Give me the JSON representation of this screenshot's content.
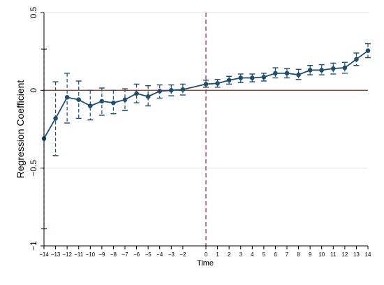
{
  "chart_data": {
    "type": "line",
    "title": "",
    "xlabel": "Time",
    "ylabel": "Regression Coefficient",
    "xlim": [
      -14,
      14
    ],
    "ylim": [
      -1,
      0.5
    ],
    "x_ticks": [
      -14,
      -13,
      -12,
      -11,
      -10,
      -9,
      -8,
      -7,
      -6,
      -5,
      -4,
      -3,
      -2,
      0,
      1,
      2,
      3,
      4,
      5,
      6,
      7,
      8,
      9,
      10,
      11,
      12,
      13,
      14
    ],
    "x_tick_labels": [
      "−14",
      "−13",
      "−12",
      "−11",
      "−10",
      "−9",
      "−8",
      "−7",
      "−6",
      "−5",
      "−4",
      "−3",
      "−2",
      "0",
      "1",
      "2",
      "3",
      "4",
      "5",
      "6",
      "7",
      "8",
      "9",
      "10",
      "11",
      "12",
      "13",
      "14"
    ],
    "y_ticks": [
      -1,
      -0.5,
      0,
      0.5
    ],
    "y_tick_labels": [
      "−1",
      "−0.5",
      "0",
      "0.5"
    ],
    "gridlines": "horizontal",
    "reference_lines": {
      "horizontal_at": 0,
      "vertical_at": 0
    },
    "series": [
      {
        "x": [
          -14,
          -13,
          -12,
          -11,
          -10,
          -9,
          -8,
          -7,
          -6,
          -5,
          -4,
          -3,
          -2,
          0,
          1,
          2,
          3,
          4,
          5,
          6,
          7,
          8,
          9,
          10,
          11,
          12,
          13,
          14
        ],
        "y": [
          -0.31,
          -0.18,
          -0.045,
          -0.06,
          -0.1,
          -0.07,
          -0.08,
          -0.06,
          -0.02,
          -0.04,
          -0.005,
          0.0,
          0.005,
          0.04,
          0.045,
          0.065,
          0.08,
          0.08,
          0.085,
          0.11,
          0.11,
          0.1,
          0.13,
          0.13,
          0.14,
          0.145,
          0.2,
          0.255
        ],
        "ci_lower": [
          -0.89,
          -0.42,
          -0.21,
          -0.18,
          -0.19,
          -0.16,
          -0.15,
          -0.13,
          -0.08,
          -0.1,
          -0.05,
          -0.035,
          -0.03,
          0.02,
          0.02,
          0.04,
          0.05,
          0.055,
          0.06,
          0.08,
          0.08,
          0.07,
          0.1,
          0.1,
          0.105,
          0.11,
          0.16,
          0.21
        ],
        "ci_upper": [
          0.265,
          0.055,
          0.11,
          0.06,
          0.0,
          0.015,
          0.0,
          0.01,
          0.04,
          0.03,
          0.035,
          0.035,
          0.04,
          0.065,
          0.07,
          0.09,
          0.105,
          0.105,
          0.11,
          0.145,
          0.14,
          0.135,
          0.16,
          0.165,
          0.175,
          0.18,
          0.24,
          0.3
        ]
      }
    ]
  },
  "colors": {
    "series": "#1f4e6e",
    "reference": "#c0283a",
    "grid": "#e3e3e3",
    "axis": "#000000"
  }
}
